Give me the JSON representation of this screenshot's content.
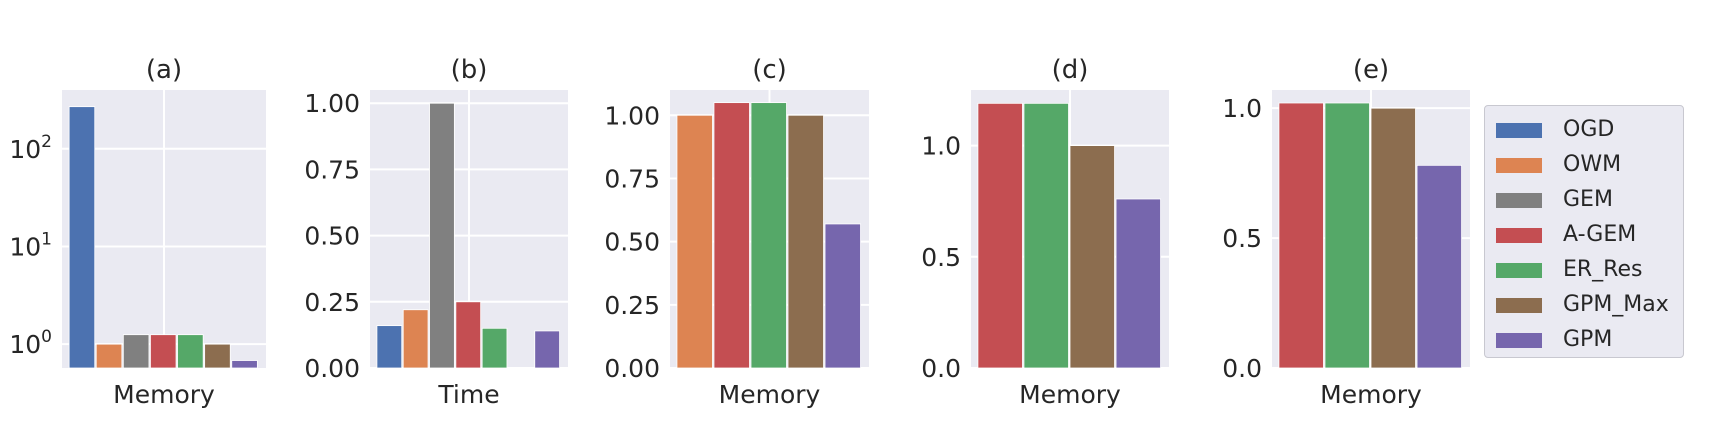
{
  "legend": {
    "entries": [
      {
        "label": "OGD",
        "color": "#4c72b0"
      },
      {
        "label": "OWM",
        "color": "#dd8452"
      },
      {
        "label": "GEM",
        "color": "#808080"
      },
      {
        "label": "A-GEM",
        "color": "#c44e52"
      },
      {
        "label": "ER_Res",
        "color": "#55a868"
      },
      {
        "label": "GPM_Max",
        "color": "#8c6d4f"
      },
      {
        "label": "GPM",
        "color": "#7666ad"
      }
    ]
  },
  "chart_data": [
    {
      "type": "bar",
      "title": "(a)",
      "xlabel": "Memory",
      "ylabel": "",
      "yscale": "log",
      "ylim": [
        0.57,
        400
      ],
      "yticks": [
        1,
        10,
        100
      ],
      "ytick_labels": [
        {
          "base": "10",
          "exp": "0"
        },
        {
          "base": "10",
          "exp": "1"
        },
        {
          "base": "10",
          "exp": "2"
        }
      ],
      "series": [
        "OGD",
        "OWM",
        "GEM",
        "A-GEM",
        "ER_Res",
        "GPM_Max",
        "GPM"
      ],
      "values": [
        270,
        1.0,
        1.25,
        1.25,
        1.25,
        1.0,
        0.68
      ],
      "grid": true
    },
    {
      "type": "bar",
      "title": "(b)",
      "xlabel": "Time",
      "ylabel": "",
      "yscale": "linear",
      "ylim": [
        0,
        1.05
      ],
      "yticks": [
        0.0,
        0.25,
        0.5,
        0.75,
        1.0
      ],
      "ytick_labels": [
        "0.00",
        "0.25",
        "0.50",
        "0.75",
        "1.00"
      ],
      "series": [
        "OGD",
        "OWM",
        "GEM",
        "A-GEM",
        "ER_Res",
        "GPM_Max",
        "GPM"
      ],
      "values": [
        0.16,
        0.22,
        1.0,
        0.25,
        0.15,
        null,
        0.14
      ],
      "grid": true
    },
    {
      "type": "bar",
      "title": "(c)",
      "xlabel": "Memory",
      "ylabel": "",
      "yscale": "linear",
      "ylim": [
        0,
        1.1
      ],
      "yticks": [
        0.0,
        0.25,
        0.5,
        0.75,
        1.0
      ],
      "ytick_labels": [
        "0.00",
        "0.25",
        "0.50",
        "0.75",
        "1.00"
      ],
      "series": [
        "OWM",
        "A-GEM",
        "ER_Res",
        "GPM_Max",
        "GPM"
      ],
      "values": [
        1.0,
        1.05,
        1.05,
        1.0,
        0.57
      ],
      "grid": true
    },
    {
      "type": "bar",
      "title": "(d)",
      "xlabel": "Memory",
      "ylabel": "",
      "yscale": "linear",
      "ylim": [
        0,
        1.25
      ],
      "yticks": [
        0.0,
        0.5,
        1.0
      ],
      "ytick_labels": [
        "0.0",
        "0.5",
        "1.0"
      ],
      "series": [
        "A-GEM",
        "ER_Res",
        "GPM_Max",
        "GPM"
      ],
      "values": [
        1.19,
        1.19,
        1.0,
        0.76
      ],
      "grid": true
    },
    {
      "type": "bar",
      "title": "(e)",
      "xlabel": "Memory",
      "ylabel": "",
      "yscale": "linear",
      "ylim": [
        0,
        1.07
      ],
      "yticks": [
        0.0,
        0.5,
        1.0
      ],
      "ytick_labels": [
        "0.0",
        "0.5",
        "1.0"
      ],
      "series": [
        "A-GEM",
        "ER_Res",
        "GPM_Max",
        "GPM"
      ],
      "values": [
        1.02,
        1.02,
        1.0,
        0.78
      ],
      "grid": true
    }
  ]
}
